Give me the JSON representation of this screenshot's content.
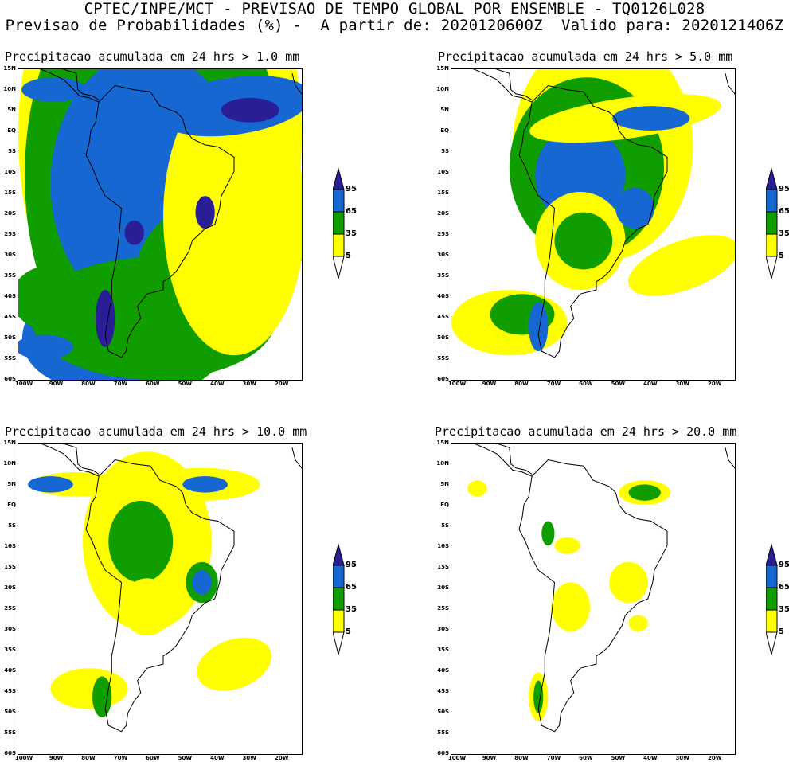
{
  "header": {
    "line1": "CPTEC/INPE/MCT - PREVISAO DE TEMPO GLOBAL POR ENSEMBLE - TQ0126L028",
    "line2": "Previsao de Probabilidades (%) -  A partir de: 2020120600Z  Valido para: 2020121406Z"
  },
  "panels": [
    {
      "title": "Precipitacao acumulada em 24 hrs > 1.0 mm"
    },
    {
      "title": "Precipitacao acumulada em 24 hrs > 5.0 mm"
    },
    {
      "title": "Precipitacao acumulada em 24 hrs > 10.0 mm"
    },
    {
      "title": "Precipitacao acumulada em 24 hrs > 20.0 mm"
    }
  ],
  "lat_labels": [
    "15N",
    "10N",
    "5N",
    "EQ",
    "5S",
    "10S",
    "15S",
    "20S",
    "25S",
    "30S",
    "35S",
    "40S",
    "45S",
    "50S",
    "55S",
    "60S"
  ],
  "lon_labels": [
    "100W",
    "90W",
    "80W",
    "70W",
    "60W",
    "50W",
    "40W",
    "30W",
    "20W"
  ],
  "colorbar": {
    "labels": [
      "95",
      "65",
      "35",
      "5"
    ],
    "colors": {
      "c5": "#ffff00",
      "c35": "#109d00",
      "c65": "#1667d2",
      "c95": "#2a1e97"
    }
  }
}
